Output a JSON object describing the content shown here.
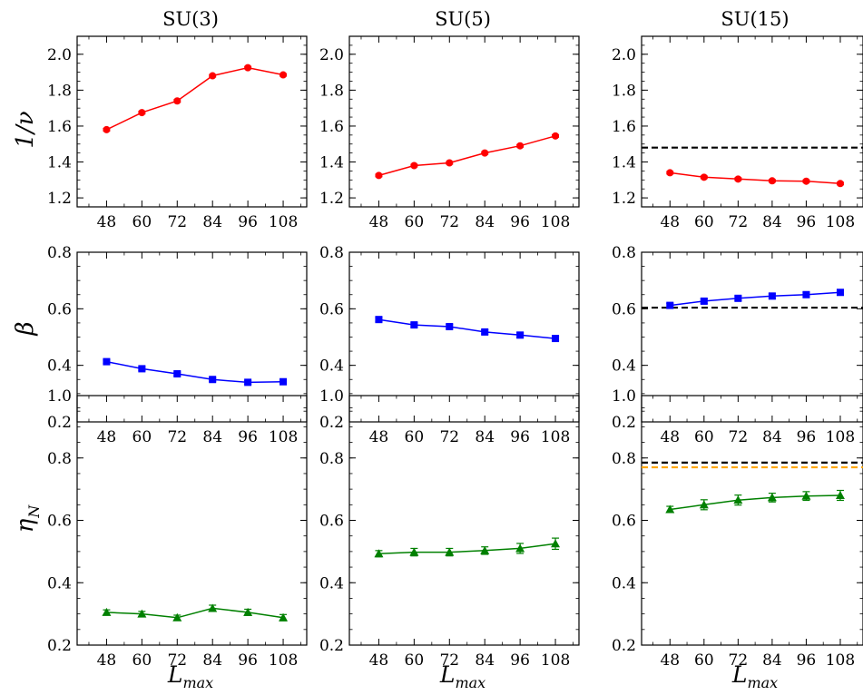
{
  "x_label": "L",
  "x_label_sub": "max",
  "column_titles": [
    "SU(3)",
    "SU(5)",
    "SU(15)"
  ],
  "row_labels": [
    {
      "main": "1/ν",
      "sub": ""
    },
    {
      "main": "β",
      "sub": ""
    },
    {
      "main": "η",
      "sub": "N"
    }
  ],
  "colors": {
    "nu": "#ff0000",
    "beta": "#0000ff",
    "eta": "#008000",
    "ref_black": "#000000",
    "ref_orange": "#ffa500"
  },
  "chart_data": [
    {
      "type": "line",
      "row": 0,
      "col": 0,
      "marker": "circle",
      "color_key": "nu",
      "x": [
        48,
        60,
        72,
        84,
        96,
        108
      ],
      "x_ticks": [
        "48",
        "60",
        "72",
        "84",
        "96",
        "108"
      ],
      "xlim": [
        38,
        116
      ],
      "ylim": [
        1.15,
        2.1
      ],
      "y_ticks": [
        1.2,
        1.4,
        1.6,
        1.8,
        2.0
      ],
      "y_tick_labels": [
        "1.2",
        "1.4",
        "1.6",
        "1.8",
        "2.0"
      ],
      "y": [
        1.58,
        1.675,
        1.74,
        1.88,
        1.925,
        1.885
      ],
      "yerr": [
        0.007,
        0.007,
        0.007,
        0.007,
        0.007,
        0.007
      ],
      "ref_lines": []
    },
    {
      "type": "line",
      "row": 0,
      "col": 1,
      "marker": "circle",
      "color_key": "nu",
      "x": [
        48,
        60,
        72,
        84,
        96,
        108
      ],
      "x_ticks": [
        "48",
        "60",
        "72",
        "84",
        "96",
        "108"
      ],
      "xlim": [
        38,
        116
      ],
      "ylim": [
        1.15,
        2.1
      ],
      "y_ticks": [
        1.2,
        1.4,
        1.6,
        1.8,
        2.0
      ],
      "y_tick_labels": [
        "1.2",
        "1.4",
        "1.6",
        "1.8",
        "2.0"
      ],
      "y": [
        1.325,
        1.38,
        1.395,
        1.45,
        1.49,
        1.545
      ],
      "yerr": [
        0.007,
        0.007,
        0.007,
        0.007,
        0.007,
        0.007
      ],
      "ref_lines": []
    },
    {
      "type": "line",
      "row": 0,
      "col": 2,
      "marker": "circle",
      "color_key": "nu",
      "x": [
        48,
        60,
        72,
        84,
        96,
        108
      ],
      "x_ticks": [
        "48",
        "60",
        "72",
        "84",
        "96",
        "108"
      ],
      "xlim": [
        38,
        116
      ],
      "ylim": [
        1.15,
        2.1
      ],
      "y_ticks": [
        1.2,
        1.4,
        1.6,
        1.8,
        2.0
      ],
      "y_tick_labels": [
        "1.2",
        "1.4",
        "1.6",
        "1.8",
        "2.0"
      ],
      "y": [
        1.34,
        1.315,
        1.305,
        1.295,
        1.293,
        1.28
      ],
      "yerr": [
        0.007,
        0.007,
        0.007,
        0.007,
        0.007,
        0.007
      ],
      "ref_lines": [
        {
          "y": 1.48,
          "color_key": "ref_black"
        }
      ]
    },
    {
      "type": "line",
      "row": 1,
      "col": 0,
      "marker": "square",
      "color_key": "beta",
      "x": [
        48,
        60,
        72,
        84,
        96,
        108
      ],
      "x_ticks": [
        "48",
        "60",
        "72",
        "84",
        "96",
        "108"
      ],
      "xlim": [
        38,
        116
      ],
      "ylim": [
        0.2,
        0.8
      ],
      "y_ticks": [
        0.2,
        0.4,
        0.6,
        0.8
      ],
      "y_tick_labels": [
        "0.2",
        "0.4",
        "0.6",
        "0.8"
      ],
      "y": [
        0.413,
        0.388,
        0.37,
        0.35,
        0.34,
        0.342
      ],
      "yerr": [
        0.006,
        0.006,
        0.006,
        0.006,
        0.006,
        0.007
      ],
      "ref_lines": []
    },
    {
      "type": "line",
      "row": 1,
      "col": 1,
      "marker": "square",
      "color_key": "beta",
      "x": [
        48,
        60,
        72,
        84,
        96,
        108
      ],
      "x_ticks": [
        "48",
        "60",
        "72",
        "84",
        "96",
        "108"
      ],
      "xlim": [
        38,
        116
      ],
      "ylim": [
        0.2,
        0.8
      ],
      "y_ticks": [
        0.2,
        0.4,
        0.6,
        0.8
      ],
      "y_tick_labels": [
        "0.2",
        "0.4",
        "0.6",
        "0.8"
      ],
      "y": [
        0.562,
        0.543,
        0.537,
        0.518,
        0.507,
        0.495
      ],
      "yerr": [
        0.007,
        0.007,
        0.007,
        0.007,
        0.008,
        0.008
      ],
      "ref_lines": []
    },
    {
      "type": "line",
      "row": 1,
      "col": 2,
      "marker": "square",
      "color_key": "beta",
      "x": [
        48,
        60,
        72,
        84,
        96,
        108
      ],
      "x_ticks": [
        "48",
        "60",
        "72",
        "84",
        "96",
        "108"
      ],
      "xlim": [
        38,
        116
      ],
      "ylim": [
        0.2,
        0.8
      ],
      "y_ticks": [
        0.2,
        0.4,
        0.6,
        0.8
      ],
      "y_tick_labels": [
        "0.2",
        "0.4",
        "0.6",
        "0.8"
      ],
      "y": [
        0.612,
        0.627,
        0.637,
        0.645,
        0.65,
        0.658
      ],
      "yerr": [
        0.007,
        0.008,
        0.008,
        0.008,
        0.008,
        0.009
      ],
      "ref_lines": [
        {
          "y": 0.604,
          "color_key": "ref_black"
        }
      ]
    },
    {
      "type": "line",
      "row": 2,
      "col": 0,
      "marker": "triangle",
      "color_key": "eta",
      "x": [
        48,
        60,
        72,
        84,
        96,
        108
      ],
      "x_ticks": [
        "48",
        "60",
        "72",
        "84",
        "96",
        "108"
      ],
      "xlim": [
        38,
        116
      ],
      "ylim": [
        0.2,
        1.0
      ],
      "y_ticks": [
        0.2,
        0.4,
        0.6,
        0.8,
        1.0
      ],
      "y_tick_labels": [
        "0.2",
        "0.4",
        "0.6",
        "0.8",
        "1.0"
      ],
      "y": [
        0.305,
        0.3,
        0.288,
        0.318,
        0.305,
        0.288
      ],
      "yerr": [
        0.008,
        0.008,
        0.008,
        0.01,
        0.01,
        0.01
      ],
      "ref_lines": []
    },
    {
      "type": "line",
      "row": 2,
      "col": 1,
      "marker": "triangle",
      "color_key": "eta",
      "x": [
        48,
        60,
        72,
        84,
        96,
        108
      ],
      "x_ticks": [
        "48",
        "60",
        "72",
        "84",
        "96",
        "108"
      ],
      "xlim": [
        38,
        116
      ],
      "ylim": [
        0.2,
        1.0
      ],
      "y_ticks": [
        0.2,
        0.4,
        0.6,
        0.8,
        1.0
      ],
      "y_tick_labels": [
        "0.2",
        "0.4",
        "0.6",
        "0.8",
        "1.0"
      ],
      "y": [
        0.493,
        0.498,
        0.498,
        0.503,
        0.51,
        0.525
      ],
      "yerr": [
        0.01,
        0.012,
        0.012,
        0.012,
        0.016,
        0.018
      ],
      "ref_lines": []
    },
    {
      "type": "line",
      "row": 2,
      "col": 2,
      "marker": "triangle",
      "color_key": "eta",
      "x": [
        48,
        60,
        72,
        84,
        96,
        108
      ],
      "x_ticks": [
        "48",
        "60",
        "72",
        "84",
        "96",
        "108"
      ],
      "xlim": [
        38,
        116
      ],
      "ylim": [
        0.2,
        1.0
      ],
      "y_ticks": [
        0.2,
        0.4,
        0.6,
        0.8,
        1.0
      ],
      "y_tick_labels": [
        "0.2",
        "0.4",
        "0.6",
        "0.8",
        "1.0"
      ],
      "y": [
        0.635,
        0.65,
        0.665,
        0.673,
        0.678,
        0.68
      ],
      "yerr": [
        0.01,
        0.016,
        0.016,
        0.014,
        0.014,
        0.016
      ],
      "ref_lines": [
        {
          "y": 0.785,
          "color_key": "ref_black"
        },
        {
          "y": 0.77,
          "color_key": "ref_orange"
        }
      ]
    }
  ]
}
